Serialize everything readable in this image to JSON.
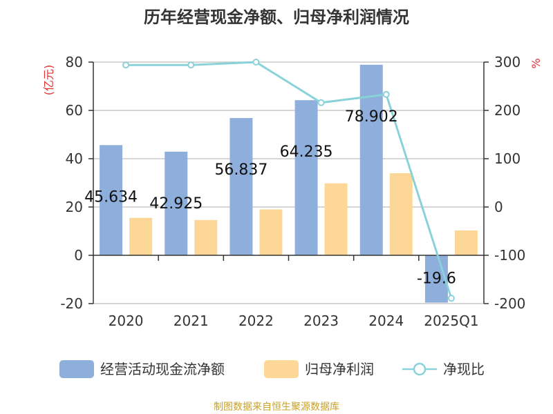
{
  "chart_data": {
    "type": "bar",
    "title": "历年经营现金净额、归母净利润情况",
    "categories": [
      "2020",
      "2021",
      "2022",
      "2023",
      "2024",
      "2025Q1"
    ],
    "left_axis": {
      "unit": "(亿元)",
      "ylim": [
        -20,
        80
      ],
      "ticks": [
        -20,
        0,
        20,
        40,
        60,
        80
      ]
    },
    "right_axis": {
      "unit": "%",
      "ylim": [
        -200,
        300
      ],
      "ticks": [
        -200,
        -100,
        0,
        100,
        200,
        300
      ]
    },
    "series": [
      {
        "name": "经营活动现金流净额",
        "type": "bar",
        "axis": "left",
        "color": "#8eaedb",
        "values": [
          45.634,
          42.925,
          56.837,
          64.235,
          78.902,
          -19.6
        ],
        "labels": [
          "45.634",
          "42.925",
          "56.837",
          "64.235",
          "78.902",
          "-19.6"
        ]
      },
      {
        "name": "归母净利润",
        "type": "bar",
        "axis": "left",
        "color": "#fdd797",
        "values": [
          15.5,
          14.6,
          19.0,
          29.8,
          34.0,
          10.3
        ]
      },
      {
        "name": "净现比",
        "type": "line",
        "axis": "right",
        "color": "#89d2d9",
        "values": [
          294,
          294,
          300,
          216,
          233,
          -189
        ]
      }
    ],
    "grid": true,
    "legend": "bottom"
  },
  "source": "制图数据来自恒生聚源数据库"
}
